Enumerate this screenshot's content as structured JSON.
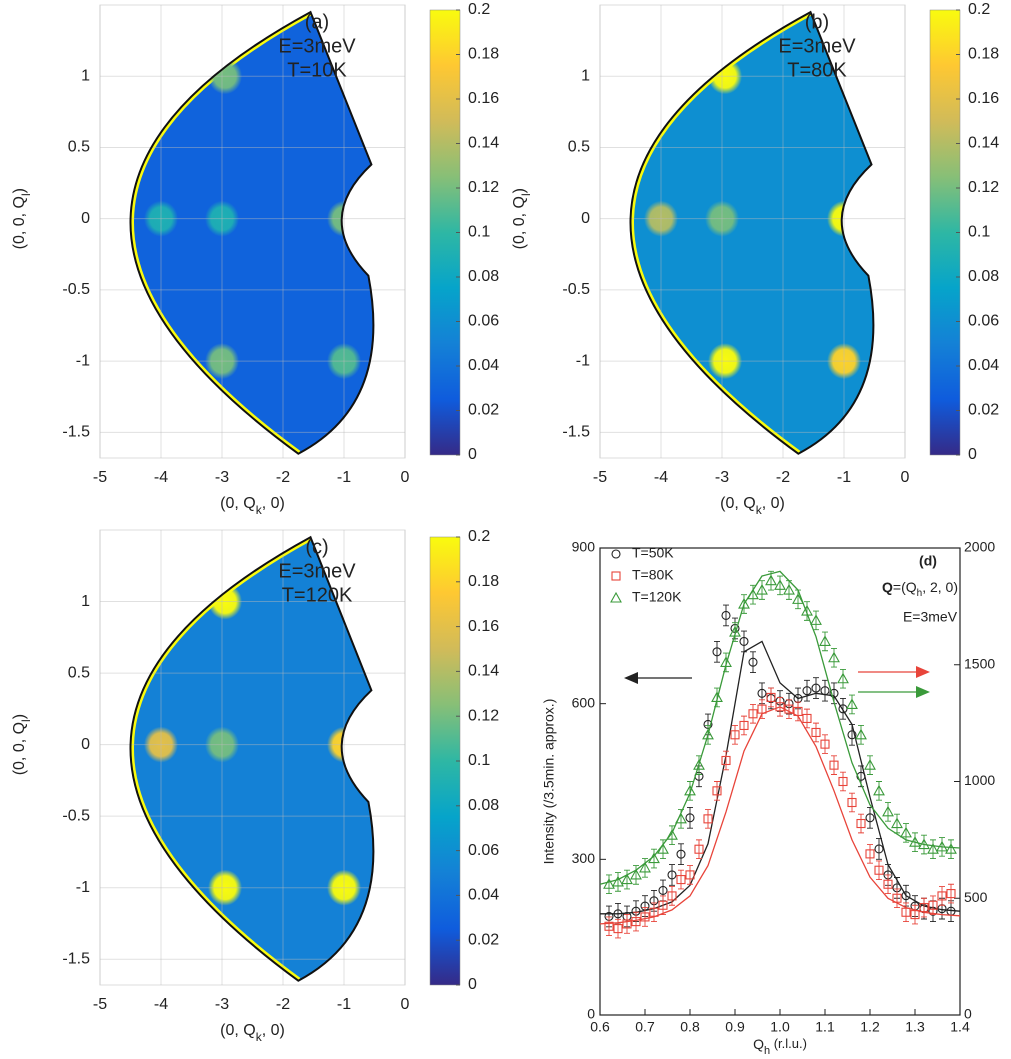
{
  "chart_data": [
    {
      "type": "heatmap",
      "title": "(a)",
      "annotations": [
        "E=3meV",
        "T=10K"
      ],
      "xlabel": [
        "(0, Q",
        "k",
        ", 0)"
      ],
      "ylabel": [
        "(0, 0, Q",
        "l",
        ")"
      ],
      "xlim": [
        -5,
        0
      ],
      "xticks": [
        -5,
        -4,
        -3,
        -2,
        -1,
        0
      ],
      "ylim": [
        -1.68,
        1.5
      ],
      "yticks": [
        -1.5,
        -1,
        -0.5,
        0,
        0.5,
        1
      ],
      "grid": true,
      "background": 0.03,
      "spots": {
        "x": [
          -2.95,
          -4,
          -3,
          -3,
          -1,
          -1
        ],
        "y": [
          1,
          0,
          0,
          -1,
          -1,
          0
        ],
        "values": [
          0.12,
          0.09,
          0.09,
          0.12,
          0.11,
          0.12
        ]
      },
      "colorbar": {
        "clim": [
          0,
          0.2
        ],
        "ticks": [
          0,
          0.02,
          0.04,
          0.06,
          0.08,
          0.1,
          0.12,
          0.14,
          0.16,
          0.18,
          0.2
        ],
        "colors": [
          "#352a87",
          "#0f5cdd",
          "#1481d6",
          "#06a4ca",
          "#2eb7a4",
          "#87bf77",
          "#d1bb59",
          "#fec832",
          "#f9fb0e"
        ]
      }
    },
    {
      "type": "heatmap",
      "title": "(b)",
      "annotations": [
        "E=3meV",
        "T=80K"
      ],
      "xlabel": [
        "(0, Q",
        "k",
        ", 0)"
      ],
      "ylabel": [
        "(0, 0, Q",
        "l",
        ")"
      ],
      "xlim": [
        -5,
        0
      ],
      "xticks": [
        -5,
        -4,
        -3,
        -2,
        -1,
        0
      ],
      "ylim": [
        -1.68,
        1.5
      ],
      "yticks": [
        -1.5,
        -1,
        -0.5,
        0,
        0.5,
        1
      ],
      "grid": true,
      "background": 0.06,
      "spots": {
        "x": [
          -2.95,
          -4,
          -3,
          -2.95,
          -1,
          -1
        ],
        "y": [
          1,
          0,
          0,
          -1,
          -1,
          0
        ],
        "values": [
          0.2,
          0.14,
          0.12,
          0.2,
          0.18,
          0.2
        ]
      },
      "colorbar": {
        "clim": [
          0,
          0.2
        ],
        "ticks": [
          0,
          0.02,
          0.04,
          0.06,
          0.08,
          0.1,
          0.12,
          0.14,
          0.16,
          0.18,
          0.2
        ],
        "colors": [
          "#352a87",
          "#0f5cdd",
          "#1481d6",
          "#06a4ca",
          "#2eb7a4",
          "#87bf77",
          "#d1bb59",
          "#fec832",
          "#f9fb0e"
        ]
      }
    },
    {
      "type": "heatmap",
      "title": "(c)",
      "annotations": [
        "E=3meV",
        "T=120K"
      ],
      "xlabel": [
        "(0, Q",
        "k",
        ", 0)"
      ],
      "ylabel": [
        "(0, 0, Q",
        "l",
        ")"
      ],
      "xlim": [
        -5,
        0
      ],
      "xticks": [
        -5,
        -4,
        -3,
        -2,
        -1,
        0
      ],
      "ylim": [
        -1.68,
        1.5
      ],
      "yticks": [
        -1.5,
        -1,
        -0.5,
        0,
        0.5,
        1
      ],
      "grid": true,
      "background": 0.05,
      "spots": {
        "x": [
          -2.95,
          -4,
          -3,
          -2.95,
          -1,
          -1
        ],
        "y": [
          1,
          0,
          0,
          -1,
          -1,
          0
        ],
        "values": [
          0.2,
          0.16,
          0.12,
          0.2,
          0.2,
          0.18
        ]
      },
      "colorbar": {
        "clim": [
          0,
          0.2
        ],
        "ticks": [
          0,
          0.02,
          0.04,
          0.06,
          0.08,
          0.1,
          0.12,
          0.14,
          0.16,
          0.18,
          0.2
        ],
        "colors": [
          "#352a87",
          "#0f5cdd",
          "#1481d6",
          "#06a4ca",
          "#2eb7a4",
          "#87bf77",
          "#d1bb59",
          "#fec832",
          "#f9fb0e"
        ]
      }
    },
    {
      "type": "scatter",
      "title": "(d)",
      "annotations": [
        "E=3meV"
      ],
      "q_label": [
        "Q",
        "=(Q",
        "h",
        ", 2, 0)"
      ],
      "xlabel": [
        "Q",
        "h",
        " (r.l.u.)"
      ],
      "ylabel": "Intensity (/3.5min. approx.)",
      "xlim": [
        0.6,
        1.4
      ],
      "xticks": [
        0.6,
        0.7,
        0.8,
        0.9,
        {
          "value": 1,
          "label": "1.0"
        },
        1.1,
        1.2,
        1.3,
        1.4
      ],
      "ylim": [
        0,
        900
      ],
      "yticks": [
        0,
        300,
        600,
        900
      ],
      "y2lim": [
        0,
        2000
      ],
      "y2ticks": [
        0,
        500,
        1000,
        1500,
        2000
      ],
      "x": [
        0.62,
        0.64,
        0.66,
        0.68,
        0.7,
        0.72,
        0.74,
        0.76,
        0.78,
        0.8,
        0.82,
        0.84,
        0.86,
        0.88,
        0.9,
        0.92,
        0.94,
        0.96,
        0.98,
        1,
        1.02,
        1.04,
        1.06,
        1.08,
        1.1,
        1.12,
        1.14,
        1.16,
        1.18,
        1.2,
        1.22,
        1.24,
        1.26,
        1.28,
        1.3,
        1.32,
        1.34,
        1.36,
        1.38
      ],
      "fit_x": [
        0.6,
        0.64,
        0.68,
        0.72,
        0.76,
        0.8,
        0.84,
        0.88,
        0.92,
        0.96,
        1,
        1.04,
        1.08,
        1.12,
        1.16,
        1.2,
        1.24,
        1.28,
        1.32,
        1.36,
        1.4
      ],
      "series": [
        {
          "name": "T=50K",
          "color": "#222222",
          "marker": "circle",
          "error": 20,
          "values": [
            190,
            195,
            190,
            200,
            210,
            220,
            240,
            270,
            310,
            380,
            460,
            560,
            700,
            770,
            745,
            720,
            680,
            620,
            610,
            605,
            600,
            610,
            625,
            630,
            625,
            620,
            590,
            540,
            460,
            380,
            320,
            270,
            245,
            230,
            210,
            205,
            200,
            205,
            200
          ],
          "fit": [
            195,
            195,
            198,
            205,
            218,
            250,
            330,
            500,
            700,
            720,
            640,
            610,
            620,
            615,
            560,
            420,
            290,
            230,
            210,
            203,
            200
          ]
        },
        {
          "name": "T=80K",
          "color": "#e8443a",
          "marker": "square",
          "axis": "y2",
          "error": 40,
          "values": [
            380,
            370,
            390,
            400,
            420,
            440,
            470,
            510,
            580,
            600,
            710,
            840,
            960,
            1090,
            1200,
            1240,
            1290,
            1310,
            1360,
            1320,
            1310,
            1300,
            1270,
            1210,
            1160,
            1070,
            1000,
            910,
            820,
            690,
            620,
            560,
            500,
            440,
            430,
            460,
            470,
            510,
            520
          ],
          "fit": [
            390,
            395,
            405,
            420,
            450,
            510,
            640,
            870,
            1130,
            1290,
            1320,
            1280,
            1150,
            960,
            750,
            590,
            500,
            460,
            440,
            430,
            425
          ]
        },
        {
          "name": "T=120K",
          "color": "#3a9a3a",
          "marker": "triangle",
          "axis": "y2",
          "error": 40,
          "values": [
            560,
            570,
            580,
            600,
            630,
            670,
            710,
            770,
            840,
            960,
            1070,
            1200,
            1360,
            1510,
            1640,
            1760,
            1800,
            1820,
            1860,
            1840,
            1820,
            1780,
            1730,
            1690,
            1600,
            1530,
            1440,
            1330,
            1200,
            1070,
            960,
            870,
            820,
            780,
            740,
            730,
            710,
            720,
            710
          ],
          "fit": [
            560,
            580,
            620,
            680,
            780,
            950,
            1200,
            1500,
            1760,
            1880,
            1900,
            1820,
            1620,
            1340,
            1080,
            900,
            800,
            750,
            730,
            720,
            715
          ]
        }
      ]
    }
  ]
}
